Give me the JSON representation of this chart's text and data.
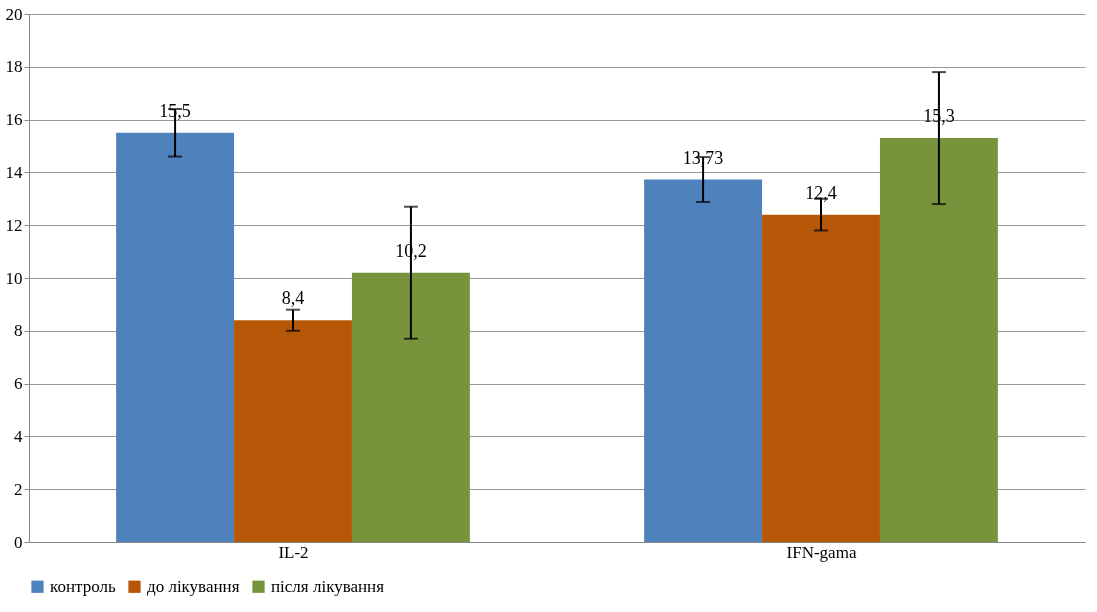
{
  "chart_data": {
    "type": "bar",
    "categories": [
      "IL-2",
      "IFN-gama"
    ],
    "series": [
      {
        "name": "контроль",
        "color": "#4f81bd",
        "values": [
          15.5,
          13.73
        ],
        "errors": [
          0.9,
          0.85
        ],
        "value_labels": [
          "15,5",
          "13,73"
        ]
      },
      {
        "name": "до лікування",
        "color": "#b65708",
        "values": [
          8.4,
          12.4
        ],
        "errors": [
          0.4,
          0.6
        ],
        "value_labels": [
          "8,4",
          "12,4"
        ]
      },
      {
        "name": "після лікування",
        "color": "#77933c",
        "values": [
          10.2,
          15.3
        ],
        "errors": [
          2.5,
          2.5
        ],
        "value_labels": [
          "10,2",
          "15,3"
        ]
      }
    ],
    "ylim": [
      0,
      20
    ],
    "yticks": [
      0,
      2,
      4,
      6,
      8,
      10,
      12,
      14,
      16,
      18,
      20
    ],
    "grid": "y",
    "legend": "bottom"
  }
}
